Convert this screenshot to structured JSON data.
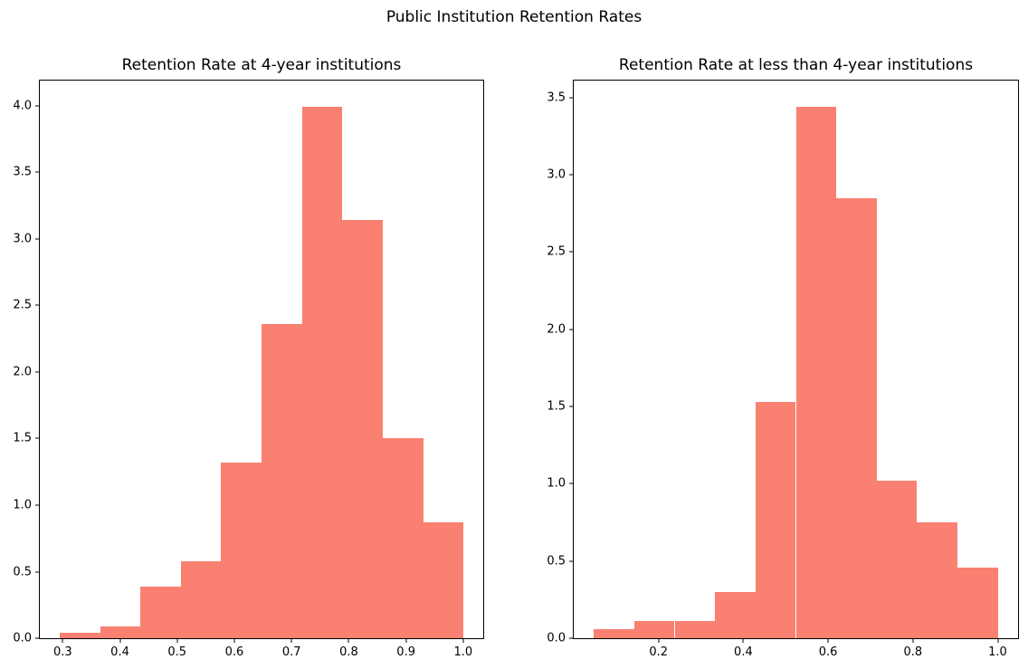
{
  "figure": {
    "suptitle": "Public Institution Retention Rates",
    "background_color": "#ffffff",
    "bar_color": "#fa8072",
    "spine_color": "#000000",
    "text_color": "#000000"
  },
  "chart_data": [
    {
      "type": "bar",
      "subtype": "histogram",
      "title": "Retention Rate at 4-year institutions",
      "xlabel": "",
      "ylabel": "",
      "bin_edges": [
        0.295,
        0.366,
        0.436,
        0.507,
        0.577,
        0.648,
        0.718,
        0.789,
        0.859,
        0.93,
        1.0
      ],
      "values": [
        0.04,
        0.09,
        0.39,
        0.58,
        1.32,
        2.36,
        3.99,
        3.14,
        1.5,
        0.87
      ],
      "x_ticks": [
        0.3,
        0.4,
        0.5,
        0.6,
        0.7,
        0.8,
        0.9,
        1.0
      ],
      "y_ticks": [
        0.0,
        0.5,
        1.0,
        1.5,
        2.0,
        2.5,
        3.0,
        3.5,
        4.0
      ],
      "xlim": [
        0.26,
        1.035
      ],
      "ylim": [
        0,
        4.19
      ],
      "grid": false,
      "legend": null
    },
    {
      "type": "bar",
      "subtype": "histogram",
      "title": "Retention Rate at less than 4-year institutions",
      "xlabel": "",
      "ylabel": "",
      "bin_edges": [
        0.048,
        0.143,
        0.238,
        0.333,
        0.429,
        0.524,
        0.619,
        0.714,
        0.81,
        0.905,
        1.0
      ],
      "values": [
        0.06,
        0.11,
        0.11,
        0.3,
        1.53,
        3.44,
        2.85,
        1.02,
        0.75,
        0.46
      ],
      "x_ticks": [
        0.2,
        0.4,
        0.6,
        0.8,
        1.0
      ],
      "y_ticks": [
        0.0,
        0.5,
        1.0,
        1.5,
        2.0,
        2.5,
        3.0,
        3.5
      ],
      "xlim": [
        0.0,
        1.048
      ],
      "ylim": [
        0,
        3.61
      ],
      "grid": false,
      "legend": null
    }
  ]
}
